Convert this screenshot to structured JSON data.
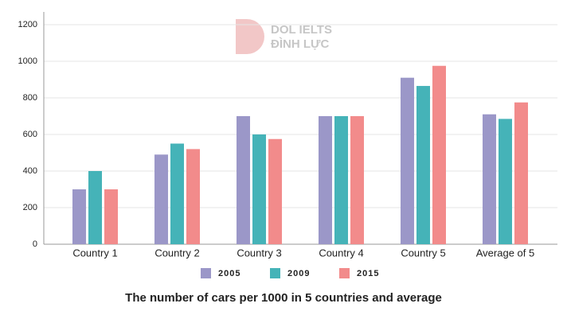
{
  "chart_data": {
    "type": "bar",
    "title": "The number of cars per 1000 in 5 countries and average",
    "watermark": [
      "DOL IELTS",
      "ĐÌNH LỰC"
    ],
    "categories": [
      "Country 1",
      "Country 2",
      "Country 3",
      "Country 4",
      "Country 5",
      "Average of 5"
    ],
    "series": [
      {
        "name": "2005",
        "color": "#9b97c8",
        "values": [
          300,
          490,
          700,
          700,
          910,
          710
        ]
      },
      {
        "name": "2009",
        "color": "#45b3b8",
        "values": [
          400,
          550,
          600,
          700,
          865,
          685
        ]
      },
      {
        "name": "2015",
        "color": "#f28b8b",
        "values": [
          300,
          520,
          575,
          700,
          975,
          775
        ]
      }
    ],
    "ylim": [
      0,
      1200
    ],
    "yticks": [
      0,
      200,
      400,
      600,
      800,
      1000,
      1200
    ],
    "grid": true
  }
}
